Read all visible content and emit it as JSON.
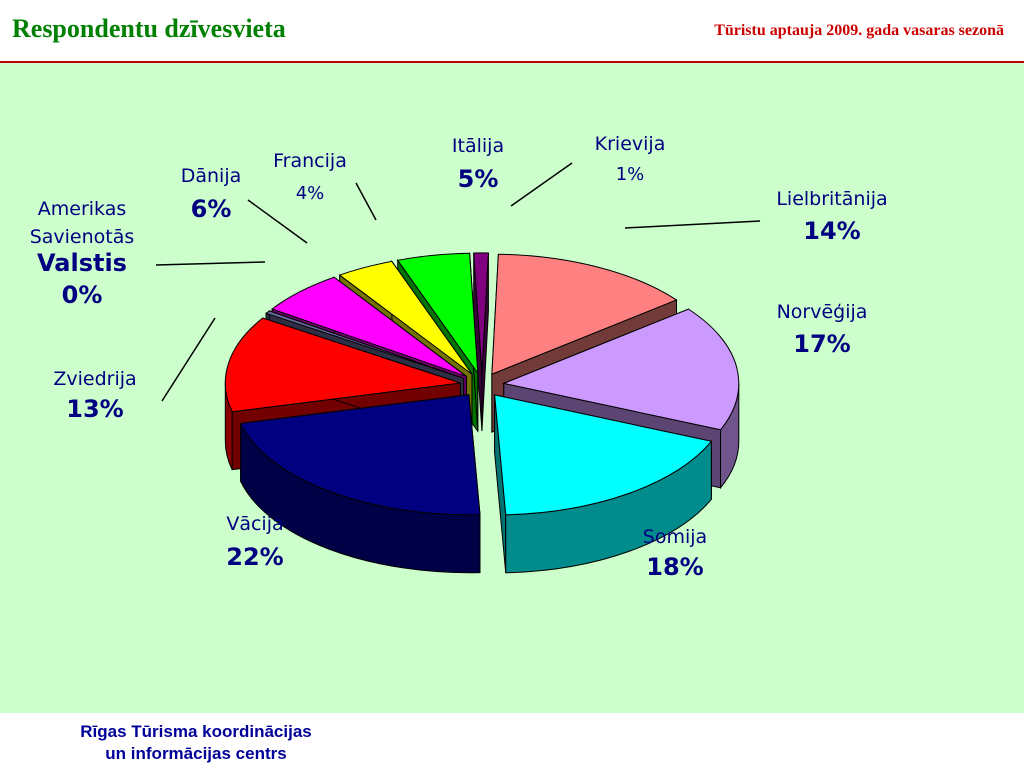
{
  "header": {
    "title": "Respondentu dzīvesvieta",
    "subtitle": "Tūristu aptauja 2009. gada vasaras sezonā"
  },
  "footer": {
    "line1": "Rīgas Tūrisma koordinācijas",
    "line2": "un informācijas centrs"
  },
  "colors": {
    "background": "#ccffcc",
    "title": "#008000",
    "subtitle": "#cc0000",
    "label_text": "#000080",
    "footer_text": "#000099"
  },
  "chart_data": {
    "type": "pie",
    "style": "3d-exploded",
    "legend": "none",
    "slices": [
      {
        "label": "Krievija",
        "value": 1,
        "value_label": "1%",
        "color": "#800080"
      },
      {
        "label": "Lielbritānija",
        "value": 14,
        "value_label": "14%",
        "color": "#ff8080"
      },
      {
        "label": "Norvēģija",
        "value": 17,
        "value_label": "17%",
        "color": "#cc99ff"
      },
      {
        "label": "Somija",
        "value": 18,
        "value_label": "18%",
        "color": "#00ffff"
      },
      {
        "label": "Vācija",
        "value": 22,
        "value_label": "22%",
        "color": "#000080"
      },
      {
        "label": "Zviedrija",
        "value": 13,
        "value_label": "13%",
        "color": "#ff0000"
      },
      {
        "label": "Amerikas Savienotās Valstis",
        "label_lines": [
          "Amerikas",
          "Savienotās",
          "Valstis"
        ],
        "value": 0.4,
        "value_label": "0%",
        "color": "#666699"
      },
      {
        "label": "Dānija",
        "value": 6,
        "value_label": "6%",
        "color": "#ff00ff"
      },
      {
        "label": "Francija",
        "value": 4,
        "value_label": "4%",
        "color": "#ffff00"
      },
      {
        "label": "Itālija",
        "value": 5,
        "value_label": "5%",
        "color": "#00ff00"
      }
    ]
  }
}
